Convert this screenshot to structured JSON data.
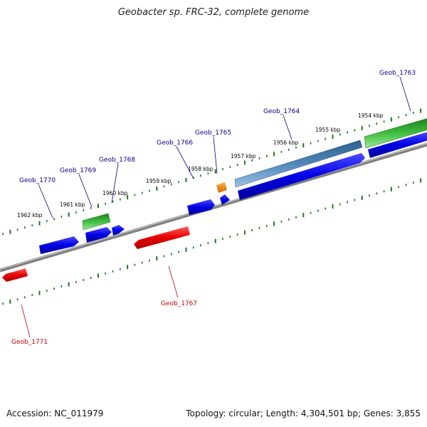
{
  "title": "Geobacter sp. FRC-32, complete genome",
  "footer": {
    "accession": "Accession: NC_011979",
    "topology": "Topology: circular; Length: 4,304,501 bp; Genes: 3,855"
  },
  "colors": {
    "forward_cds": "#0000e0",
    "reverse_cds": "#e00000",
    "rna": "#2a9a2a",
    "highlight": "#4a7fb0",
    "small_feature": "#e08000",
    "backbone": "#888888",
    "ticks": "#1a7a1a",
    "label_blue": "#00008b",
    "label_red": "#c00000"
  },
  "kbp_labels": [
    "1954 kbp",
    "1955 kbp",
    "1956 kbp",
    "1957 kbp",
    "1958 kbp",
    "1959 kbp",
    "1960 kbp",
    "1961 kbp",
    "1962 kbp"
  ],
  "gene_labels": [
    {
      "text": "Geob_1763",
      "strand": "forward"
    },
    {
      "text": "Geob_1764",
      "strand": "forward"
    },
    {
      "text": "Geob_1765",
      "strand": "forward"
    },
    {
      "text": "Geob_1766",
      "strand": "forward"
    },
    {
      "text": "Geob_1768",
      "strand": "forward"
    },
    {
      "text": "Geob_1769",
      "strand": "forward"
    },
    {
      "text": "Geob_1770",
      "strand": "forward"
    },
    {
      "text": "Geob_1767",
      "strand": "reverse"
    },
    {
      "text": "Geob_1771",
      "strand": "reverse"
    }
  ]
}
